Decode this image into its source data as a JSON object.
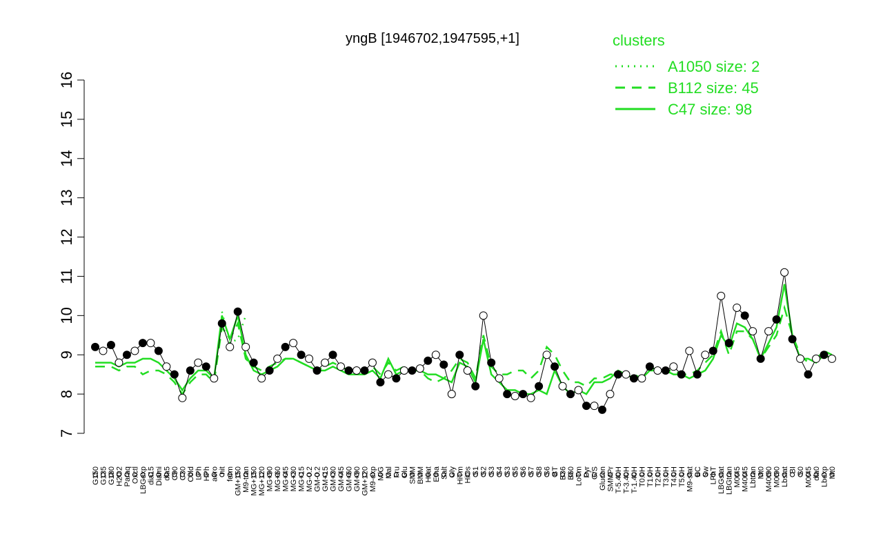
{
  "chart_data": {
    "type": "line",
    "title": "yngB [1946702,1947595,+1]",
    "categories": [
      "G150",
      "G135",
      "G180",
      "H2O2",
      "Paraq",
      "Oxctl",
      "LBGexp",
      "dia15",
      "Diami",
      "dia5",
      "C90",
      "C30",
      "Cold",
      "LPh",
      "HPh",
      "aero",
      "nit",
      "ferm",
      "GM+150",
      "M9-tran",
      "MG+150",
      "MG+120",
      "MG+90",
      "MG+60",
      "MG+45",
      "MG+30",
      "MG+15",
      "MG-0.2",
      "GM-0.2",
      "GM+15",
      "GM+30",
      "GM+45",
      "GM+60",
      "GM+90",
      "GM+120",
      "M9-exp",
      "M/G",
      "Mal",
      "Fru",
      "Glu",
      "SMM",
      "BMM",
      "Heat",
      "Etha",
      "Salt",
      "Gly",
      "HiTm",
      "HiOs",
      "S1",
      "S2",
      "S3",
      "S4",
      "S3",
      "S5",
      "S6",
      "S7",
      "S8",
      "S6",
      "BT",
      "B36",
      "B60",
      "LoTm",
      "Pyr",
      "G/S",
      "Glucon",
      "SMMPr",
      "T-5.40H",
      "T-3.40H",
      "T-1.40H",
      "T0.0H",
      "T1.0H",
      "T2.0H",
      "T3.0H",
      "T4.0H",
      "T5.0H",
      "M9-stat",
      "BC",
      "Sw",
      "LPhT",
      "LBGstat",
      "LBGtran",
      "M0t45",
      "M40t45",
      "Lbtran",
      "Mt0",
      "M40t90",
      "M0t90",
      "Lbstat",
      "BI",
      "S0",
      "M0t45",
      "dia0",
      "Lbexp",
      "Mt0"
    ],
    "values": [
      9.2,
      9.1,
      9.25,
      8.8,
      9.0,
      9.1,
      9.3,
      9.3,
      9.1,
      8.7,
      8.5,
      7.9,
      8.6,
      8.8,
      8.7,
      8.4,
      9.8,
      9.2,
      10.1,
      9.2,
      8.8,
      8.4,
      8.6,
      8.9,
      9.2,
      9.3,
      9.0,
      8.9,
      8.6,
      8.8,
      9.0,
      8.7,
      8.6,
      8.6,
      8.6,
      8.8,
      8.3,
      8.5,
      8.4,
      8.6,
      8.6,
      8.65,
      8.85,
      9.0,
      8.75,
      8.0,
      9.0,
      8.6,
      8.2,
      10.0,
      8.8,
      8.4,
      8.0,
      7.95,
      8.0,
      7.9,
      8.2,
      9.0,
      8.7,
      8.2,
      8.0,
      8.1,
      7.7,
      7.7,
      7.6,
      8.0,
      8.5,
      8.5,
      8.4,
      8.4,
      8.7,
      8.6,
      8.6,
      8.7,
      8.5,
      9.1,
      8.5,
      9.0,
      9.1,
      10.5,
      9.3,
      10.2,
      10.0,
      9.6,
      8.9,
      9.6,
      9.9,
      11.1,
      9.4,
      8.9,
      8.5,
      8.9,
      9.0,
      8.9
    ],
    "legend_title": "clusters",
    "series": [
      {
        "name": "A1050 size: 2",
        "color": "#22dd22",
        "dash": "dotted",
        "values": [
          null,
          null,
          null,
          null,
          null,
          null,
          null,
          null,
          null,
          null,
          null,
          null,
          null,
          null,
          null,
          null,
          10.1,
          9.3,
          9.4,
          10.0,
          null,
          null,
          null,
          null,
          null,
          null,
          null,
          null,
          null,
          null,
          null,
          null,
          null,
          null,
          null,
          null,
          null,
          null,
          null,
          null,
          null,
          null,
          null,
          null,
          null,
          null,
          null,
          null,
          null,
          null,
          null,
          null,
          null,
          null,
          null,
          null,
          null,
          null,
          null,
          null,
          null,
          null,
          null,
          null,
          null,
          null,
          null,
          null,
          null,
          null,
          null,
          null,
          null,
          null,
          null,
          null,
          null,
          null,
          null,
          null,
          null,
          null,
          null,
          null,
          null,
          null,
          null,
          null,
          null,
          null,
          null,
          null,
          null,
          null
        ]
      },
      {
        "name": "B112 size: 45",
        "color": "#22dd22",
        "dash": "dashed",
        "values": [
          8.7,
          8.7,
          8.7,
          8.6,
          8.7,
          8.7,
          8.5,
          8.6,
          8.6,
          8.5,
          8.3,
          8.0,
          8.3,
          8.5,
          8.5,
          8.3,
          9.7,
          9.4,
          9.8,
          8.9,
          8.7,
          8.6,
          8.7,
          8.8,
          8.9,
          8.9,
          8.8,
          8.7,
          8.6,
          8.7,
          8.8,
          8.7,
          8.6,
          8.6,
          8.6,
          8.7,
          8.5,
          8.8,
          8.6,
          8.7,
          8.6,
          8.6,
          8.4,
          8.3,
          8.4,
          8.6,
          8.9,
          8.8,
          8.4,
          9.5,
          8.7,
          8.5,
          8.5,
          8.6,
          8.6,
          8.4,
          8.6,
          9.2,
          9.0,
          8.6,
          8.3,
          8.3,
          8.2,
          8.4,
          8.4,
          8.5,
          8.5,
          8.5,
          8.5,
          8.4,
          8.7,
          8.6,
          8.6,
          8.6,
          8.5,
          8.5,
          8.6,
          8.8,
          9.0,
          9.6,
          9.0,
          9.6,
          9.6,
          9.4,
          8.9,
          9.2,
          9.5,
          10.2,
          9.5,
          9.0,
          8.8,
          8.9,
          9.1,
          9.0
        ]
      },
      {
        "name": "C47 size: 98",
        "color": "#22dd22",
        "dash": "solid",
        "values": [
          8.8,
          8.8,
          8.8,
          8.7,
          8.8,
          8.8,
          8.9,
          8.9,
          8.8,
          8.6,
          8.4,
          8.1,
          8.4,
          8.6,
          8.6,
          8.4,
          10.0,
          9.4,
          10.0,
          9.0,
          8.6,
          8.5,
          8.6,
          8.7,
          8.9,
          8.9,
          8.8,
          8.7,
          8.6,
          8.6,
          8.7,
          8.6,
          8.5,
          8.5,
          8.5,
          8.6,
          8.4,
          8.9,
          8.5,
          8.6,
          8.6,
          8.6,
          8.5,
          8.5,
          8.4,
          8.3,
          8.8,
          8.7,
          8.3,
          9.4,
          8.5,
          8.3,
          8.1,
          8.1,
          8.0,
          8.0,
          8.1,
          8.0,
          8.6,
          8.2,
          8.0,
          8.1,
          8.0,
          8.3,
          8.3,
          8.4,
          8.6,
          8.5,
          8.4,
          8.4,
          8.6,
          8.6,
          8.6,
          8.5,
          8.5,
          8.4,
          8.5,
          8.6,
          8.9,
          9.5,
          9.2,
          9.8,
          9.7,
          9.4,
          8.9,
          9.3,
          9.7,
          10.8,
          9.5,
          8.9,
          8.9,
          8.8,
          9.0,
          8.9
        ]
      }
    ],
    "ylim": [
      7,
      16
    ],
    "yticks": [
      7,
      8,
      9,
      10,
      11,
      12,
      13,
      14,
      15,
      16
    ]
  }
}
